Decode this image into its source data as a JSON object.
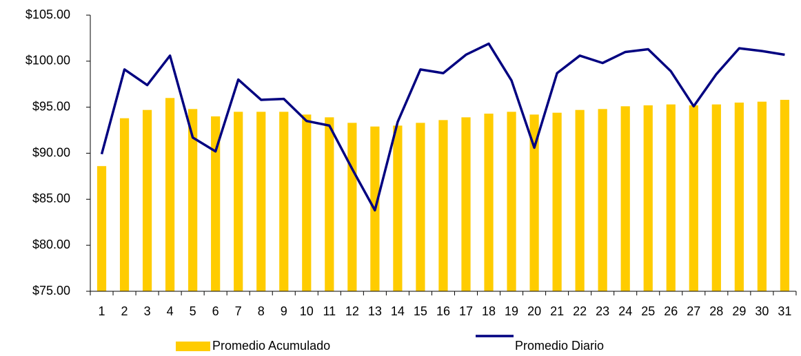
{
  "chart_data": {
    "type": "bar_line",
    "categories": [
      "1",
      "2",
      "3",
      "4",
      "5",
      "6",
      "7",
      "8",
      "9",
      "10",
      "11",
      "12",
      "13",
      "14",
      "15",
      "16",
      "17",
      "18",
      "19",
      "20",
      "21",
      "22",
      "23",
      "24",
      "25",
      "26",
      "27",
      "28",
      "29",
      "30",
      "31"
    ],
    "series": [
      {
        "name": "Promedio Acumulado",
        "type": "bar",
        "color": "#ffcc00",
        "values": [
          88.6,
          93.8,
          94.7,
          96.0,
          94.8,
          94.0,
          94.5,
          94.5,
          94.5,
          94.2,
          93.9,
          93.3,
          92.9,
          93.0,
          93.3,
          93.6,
          93.9,
          94.3,
          94.5,
          94.2,
          94.4,
          94.7,
          94.8,
          95.1,
          95.2,
          95.3,
          95.2,
          95.3,
          95.5,
          95.6,
          95.8
        ]
      },
      {
        "name": "Promedio Diario",
        "type": "line",
        "color": "#000080",
        "values": [
          89.9,
          99.1,
          97.4,
          100.6,
          91.7,
          90.2,
          98.0,
          95.8,
          95.9,
          93.5,
          93.0,
          88.3,
          83.8,
          93.4,
          99.1,
          98.7,
          100.7,
          101.9,
          97.9,
          90.6,
          98.7,
          100.6,
          99.8,
          101.0,
          101.3,
          98.9,
          95.1,
          98.6,
          101.4,
          101.1,
          100.7
        ]
      }
    ],
    "ylim": [
      75,
      105
    ],
    "yticks": [
      {
        "value": 75,
        "label": "$75.00"
      },
      {
        "value": 80,
        "label": "$80.00"
      },
      {
        "value": 85,
        "label": "$85.00"
      },
      {
        "value": 90,
        "label": "$90.00"
      },
      {
        "value": 95,
        "label": "$95.00"
      },
      {
        "value": 100,
        "label": "$100.00"
      },
      {
        "value": 105,
        "label": "$105.00"
      }
    ],
    "grid": false
  }
}
